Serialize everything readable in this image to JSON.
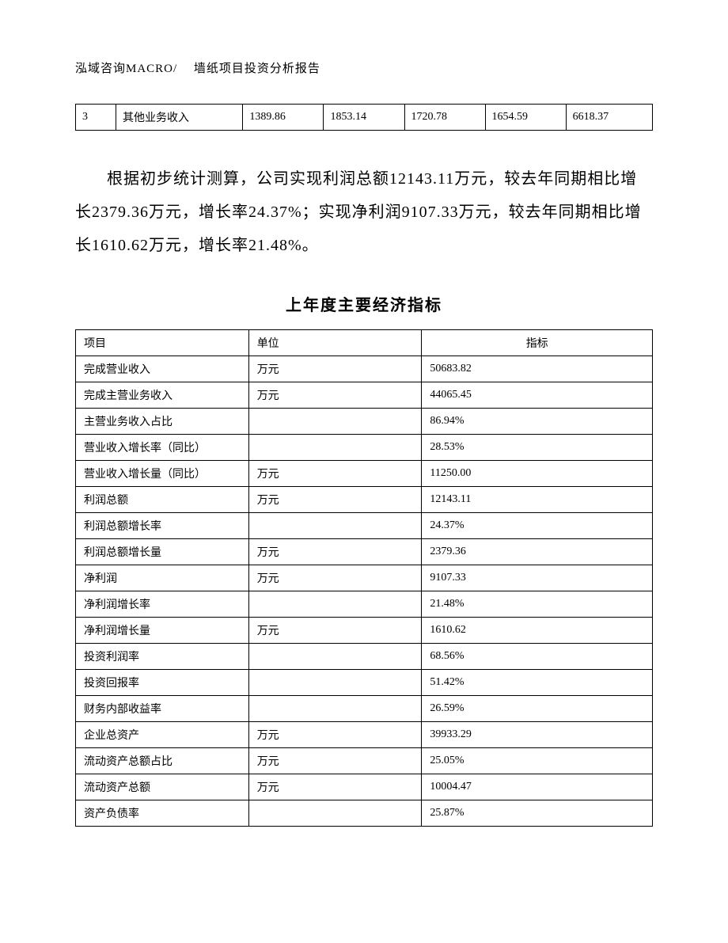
{
  "header": "泓域咨询MACRO/　 墙纸项目投资分析报告",
  "topTable": {
    "row": {
      "c0": "3",
      "c1": "其他业务收入",
      "c2": "1389.86",
      "c3": "1853.14",
      "c4": "1720.78",
      "c5": "1654.59",
      "c6": "6618.37"
    },
    "colWidths": [
      "7%",
      "22%",
      "14%",
      "14%",
      "14%",
      "14%",
      "15%"
    ]
  },
  "paragraph": "根据初步统计测算，公司实现利润总额12143.11万元，较去年同期相比增长2379.36万元，增长率24.37%；实现净利润9107.33万元，较去年同期相比增长1610.62万元，增长率21.48%。",
  "sectionTitle": "上年度主要经济指标",
  "mainTable": {
    "headers": {
      "item": "项目",
      "unit": "单位",
      "indicator": "指标"
    },
    "rows": [
      {
        "item": "完成营业收入",
        "unit": "万元",
        "indicator": "50683.82"
      },
      {
        "item": "完成主营业务收入",
        "unit": "万元",
        "indicator": "44065.45"
      },
      {
        "item": "主营业务收入占比",
        "unit": "",
        "indicator": "86.94%"
      },
      {
        "item": "营业收入增长率（同比）",
        "unit": "",
        "indicator": "28.53%"
      },
      {
        "item": "营业收入增长量（同比）",
        "unit": "万元",
        "indicator": "11250.00"
      },
      {
        "item": "利润总额",
        "unit": "万元",
        "indicator": "12143.11"
      },
      {
        "item": "利润总额增长率",
        "unit": "",
        "indicator": "24.37%"
      },
      {
        "item": "利润总额增长量",
        "unit": "万元",
        "indicator": "2379.36"
      },
      {
        "item": "净利润",
        "unit": "万元",
        "indicator": "9107.33"
      },
      {
        "item": "净利润增长率",
        "unit": "",
        "indicator": "21.48%"
      },
      {
        "item": "净利润增长量",
        "unit": "万元",
        "indicator": "1610.62"
      },
      {
        "item": "投资利润率",
        "unit": "",
        "indicator": "68.56%"
      },
      {
        "item": "投资回报率",
        "unit": "",
        "indicator": "51.42%"
      },
      {
        "item": "财务内部收益率",
        "unit": "",
        "indicator": "26.59%"
      },
      {
        "item": "企业总资产",
        "unit": "万元",
        "indicator": "39933.29"
      },
      {
        "item": "流动资产总额占比",
        "unit": "万元",
        "indicator": "25.05%"
      },
      {
        "item": "流动资产总额",
        "unit": "万元",
        "indicator": "10004.47"
      },
      {
        "item": "资产负债率",
        "unit": "",
        "indicator": "25.87%"
      }
    ]
  }
}
